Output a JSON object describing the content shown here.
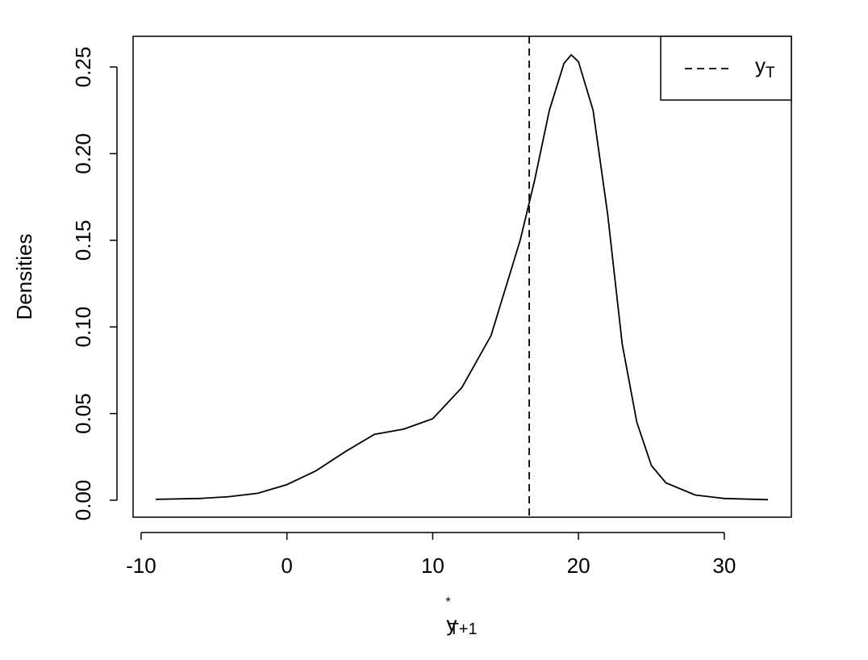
{
  "chart_data": {
    "type": "line",
    "ylabel": "Densities",
    "xlabel": {
      "main": "y",
      "sup": "*",
      "sub": "T+1"
    },
    "x": [
      -9,
      -6,
      -4,
      -2,
      0,
      2,
      4,
      6,
      8,
      10,
      12,
      14,
      16,
      17,
      18,
      19,
      19.5,
      20,
      21,
      22,
      23,
      24,
      25,
      26,
      28,
      30,
      33
    ],
    "series": [
      {
        "color": "#000000",
        "values": [
          0.0005,
          0.001,
          0.002,
          0.004,
          0.009,
          0.017,
          0.028,
          0.038,
          0.041,
          0.047,
          0.065,
          0.095,
          0.15,
          0.185,
          0.225,
          0.252,
          0.257,
          0.253,
          0.225,
          0.165,
          0.09,
          0.045,
          0.02,
          0.01,
          0.003,
          0.001,
          0.0003
        ]
      }
    ],
    "vline": {
      "x": 16.62,
      "color": "#000000",
      "label": {
        "main": "y",
        "sub": "T"
      }
    },
    "legend": "top-right",
    "xlim": [
      -10.55,
      34.6
    ],
    "ylim": [
      -0.0098,
      0.2677
    ],
    "xticks": [
      -10,
      0,
      10,
      20,
      30
    ],
    "yticks": [
      {
        "value": 0,
        "label": "0.00"
      },
      {
        "value": 0.05,
        "label": "0.05"
      },
      {
        "value": 0.1,
        "label": "0.10"
      },
      {
        "value": 0.15,
        "label": "0.15"
      },
      {
        "value": 0.2,
        "label": "0.20"
      },
      {
        "value": 0.25,
        "label": "0.25"
      }
    ]
  }
}
